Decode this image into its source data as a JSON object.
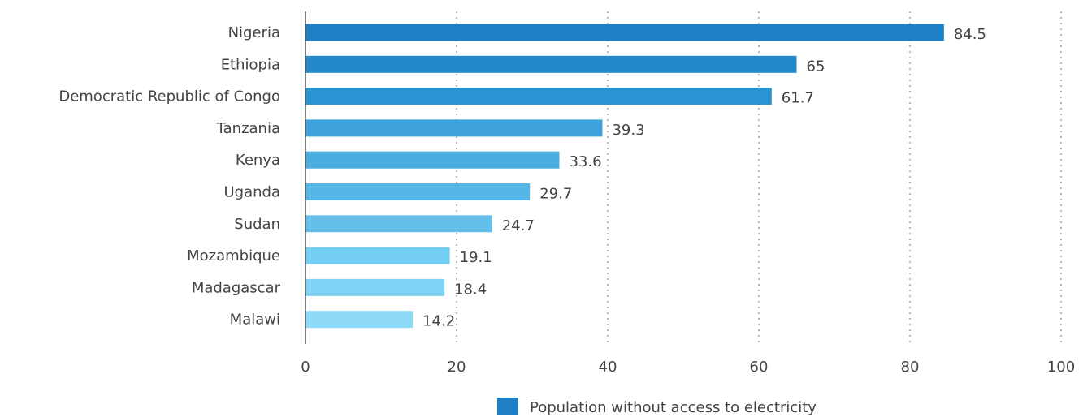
{
  "chart_data": {
    "type": "bar",
    "orientation": "horizontal",
    "categories": [
      "Nigeria",
      "Ethiopia",
      "Democratic Republic of Congo",
      "Tanzania",
      "Kenya",
      "Uganda",
      "Sudan",
      "Mozambique",
      "Madagascar",
      "Malawi"
    ],
    "series": [
      {
        "name": "Population without access to electricity",
        "values": [
          84.5,
          65,
          61.7,
          39.3,
          33.6,
          29.7,
          24.7,
          19.1,
          18.4,
          14.2
        ]
      }
    ],
    "data_labels": [
      "84.5",
      "65",
      "61.7",
      "39.3",
      "33.6",
      "29.7",
      "24.7",
      "19.1",
      "18.4",
      "14.2"
    ],
    "xticks": [
      "0",
      "20",
      "40",
      "60",
      "80",
      "100"
    ],
    "xlim": [
      0,
      100
    ],
    "grid": true,
    "legend_position": "bottom",
    "bar_colors": [
      "#1f7fc4",
      "#2389cb",
      "#2a93d2",
      "#3fa2dc",
      "#4aacdf",
      "#55b5e5",
      "#64c0eb",
      "#74cdf2",
      "#80d3f4",
      "#8cdaf7"
    ],
    "legend_color": "#1f7fc4"
  }
}
